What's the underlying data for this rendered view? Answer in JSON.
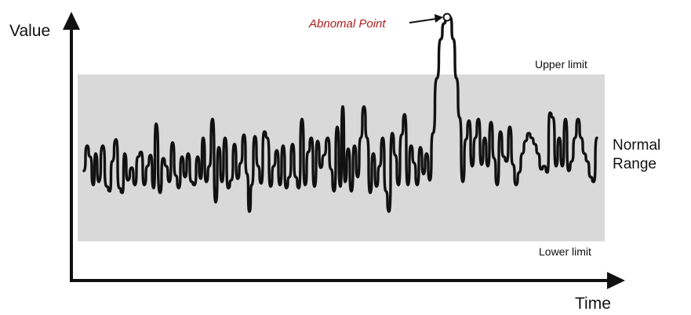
{
  "diagram": {
    "axis_y_label": "Value",
    "axis_x_label": "Time",
    "upper_limit_label": "Upper limit",
    "lower_limit_label": "Lower limit",
    "range_label_line1": "Normal",
    "range_label_line2": "Range",
    "abnormal_label": "Abnomal Point",
    "colors": {
      "band": "#d9d9d9",
      "signal": "#111111",
      "axis": "#111111",
      "abnormal_text": "#b01c1c"
    }
  }
}
